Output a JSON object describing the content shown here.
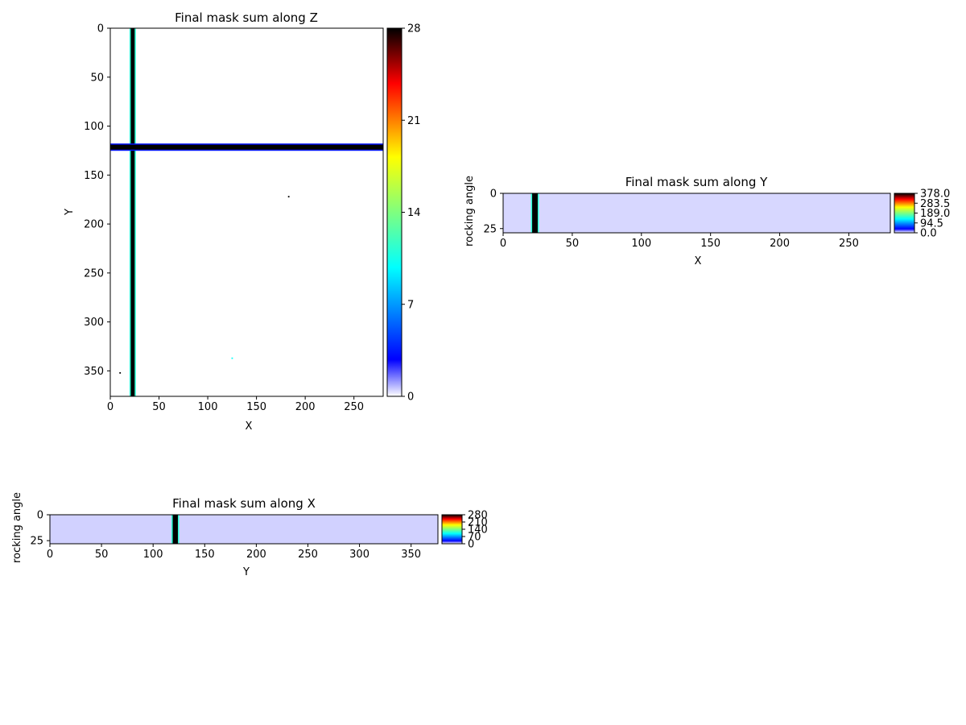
{
  "chart_data": [
    {
      "type": "heatmap",
      "title": "Final mask sum along Z",
      "xlabel": "X",
      "ylabel": "Y",
      "xlim": [
        0,
        280
      ],
      "ylim": [
        376,
        0
      ],
      "x_ticks": [
        0,
        50,
        100,
        150,
        200,
        250
      ],
      "y_ticks": [
        0,
        50,
        100,
        150,
        200,
        250,
        300,
        350
      ],
      "colorbar": {
        "min": 0,
        "max": 28,
        "ticks": [
          "0",
          "7",
          "14",
          "21",
          "28"
        ],
        "colormap": "jet_with_white_low"
      },
      "background_value": 0,
      "features": [
        {
          "name": "vertical band",
          "axis": "x",
          "from": 21,
          "to": 25,
          "value": 28
        },
        {
          "name": "horizontal band",
          "axis": "y",
          "from": 119,
          "to": 124,
          "value": 28
        },
        {
          "name": "speck",
          "x": 183,
          "y": 172,
          "value": 28
        },
        {
          "name": "speck",
          "x": 125,
          "y": 337,
          "value": 10
        },
        {
          "name": "speck",
          "x": 10,
          "y": 352,
          "value": 28
        }
      ]
    },
    {
      "type": "heatmap",
      "title": "Final mask sum along Y",
      "xlabel": "X",
      "ylabel": "rocking angle",
      "xlim": [
        0,
        280
      ],
      "ylim": [
        28,
        0
      ],
      "x_ticks": [
        0,
        50,
        100,
        150,
        200,
        250
      ],
      "y_ticks": [
        0,
        25
      ],
      "colorbar": {
        "min": 0.0,
        "max": 378.0,
        "ticks": [
          "0.0",
          "94.5",
          "189.0",
          "283.5",
          "378.0"
        ],
        "colormap": "jet_with_white_low"
      },
      "background_value": 6,
      "features": [
        {
          "name": "vertical band",
          "axis": "x",
          "from": 21,
          "to": 25,
          "value": 378
        }
      ]
    },
    {
      "type": "heatmap",
      "title": "Final mask sum along X",
      "xlabel": "Y",
      "ylabel": "rocking angle",
      "xlim": [
        0,
        376
      ],
      "ylim": [
        28,
        0
      ],
      "x_ticks": [
        0,
        50,
        100,
        150,
        200,
        250,
        300,
        350
      ],
      "y_ticks": [
        0,
        25
      ],
      "colorbar": {
        "min": 0,
        "max": 280,
        "ticks": [
          "0",
          "70",
          "140",
          "210",
          "280"
        ],
        "colormap": "jet_with_white_low"
      },
      "background_value": 5,
      "features": [
        {
          "name": "vertical band",
          "axis": "x",
          "from": 119,
          "to": 124,
          "value": 280
        }
      ]
    }
  ]
}
